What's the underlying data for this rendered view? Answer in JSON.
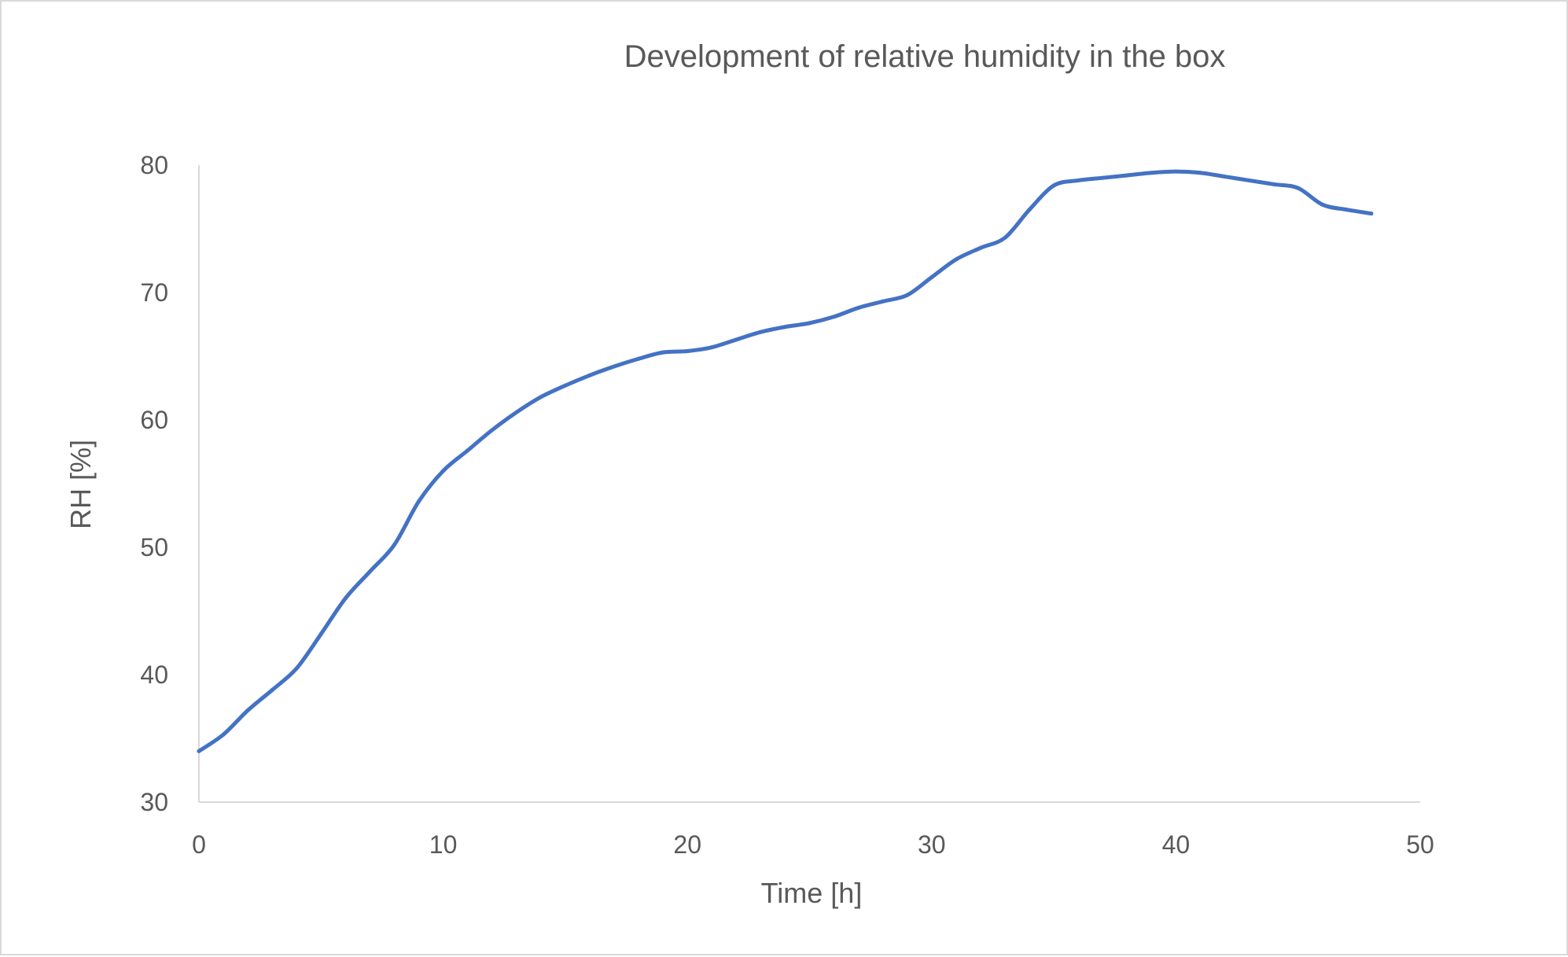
{
  "chart_data": {
    "type": "line",
    "title": "Development of relative humidity in the box",
    "xlabel": "Time [h]",
    "ylabel": "RH [%]",
    "xlim": [
      0,
      50
    ],
    "ylim": [
      30,
      80
    ],
    "xticks": [
      0,
      10,
      20,
      30,
      40,
      50
    ],
    "yticks": [
      30,
      40,
      50,
      60,
      70,
      80
    ],
    "grid": false,
    "legend": "none",
    "line_color": "#4472C4",
    "series": [
      {
        "name": "RH",
        "x": [
          0,
          1,
          2,
          3,
          4,
          5,
          6,
          7,
          8,
          9,
          10,
          11,
          12,
          13,
          14,
          15,
          16,
          17,
          18,
          19,
          20,
          21,
          22,
          23,
          24,
          25,
          26,
          27,
          28,
          29,
          30,
          31,
          32,
          33,
          34,
          35,
          36,
          37,
          38,
          39,
          40,
          41,
          42,
          43,
          44,
          45,
          46,
          47,
          48
        ],
        "values": [
          34,
          35.3,
          37.2,
          38.8,
          40.5,
          43.2,
          46,
          48.1,
          50.2,
          53.6,
          56,
          57.6,
          59.2,
          60.6,
          61.8,
          62.7,
          63.5,
          64.2,
          64.8,
          65.3,
          65.4,
          65.7,
          66.3,
          66.9,
          67.3,
          67.6,
          68.1,
          68.8,
          69.3,
          69.8,
          71.2,
          72.6,
          73.5,
          74.3,
          76.5,
          78.4,
          78.8,
          79,
          79.2,
          79.4,
          79.5,
          79.4,
          79.1,
          78.8,
          78.5,
          78.2,
          76.9,
          76.5,
          76.2
        ]
      }
    ]
  }
}
